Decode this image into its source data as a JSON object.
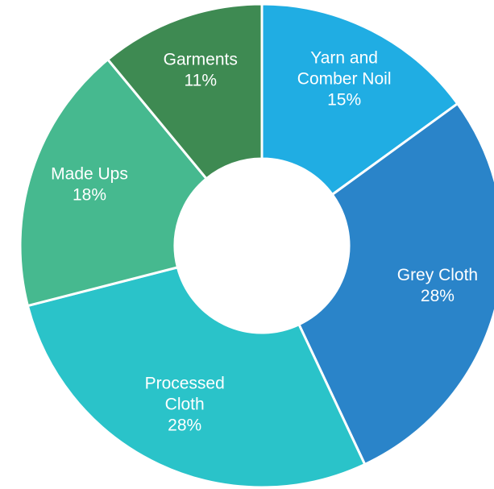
{
  "chart_data": {
    "type": "donut",
    "categories": [
      "Yarn and Comber Noil",
      "Grey Cloth",
      "Processed Cloth",
      "Made Ups",
      "Garments"
    ],
    "values": [
      15,
      28,
      28,
      18,
      11
    ],
    "value_labels": [
      "15%",
      "28%",
      "28%",
      "18%",
      "11%"
    ],
    "colors": [
      "#20ade3",
      "#2a84c9",
      "#2ac3c9",
      "#46b98f",
      "#3e8a52"
    ]
  }
}
